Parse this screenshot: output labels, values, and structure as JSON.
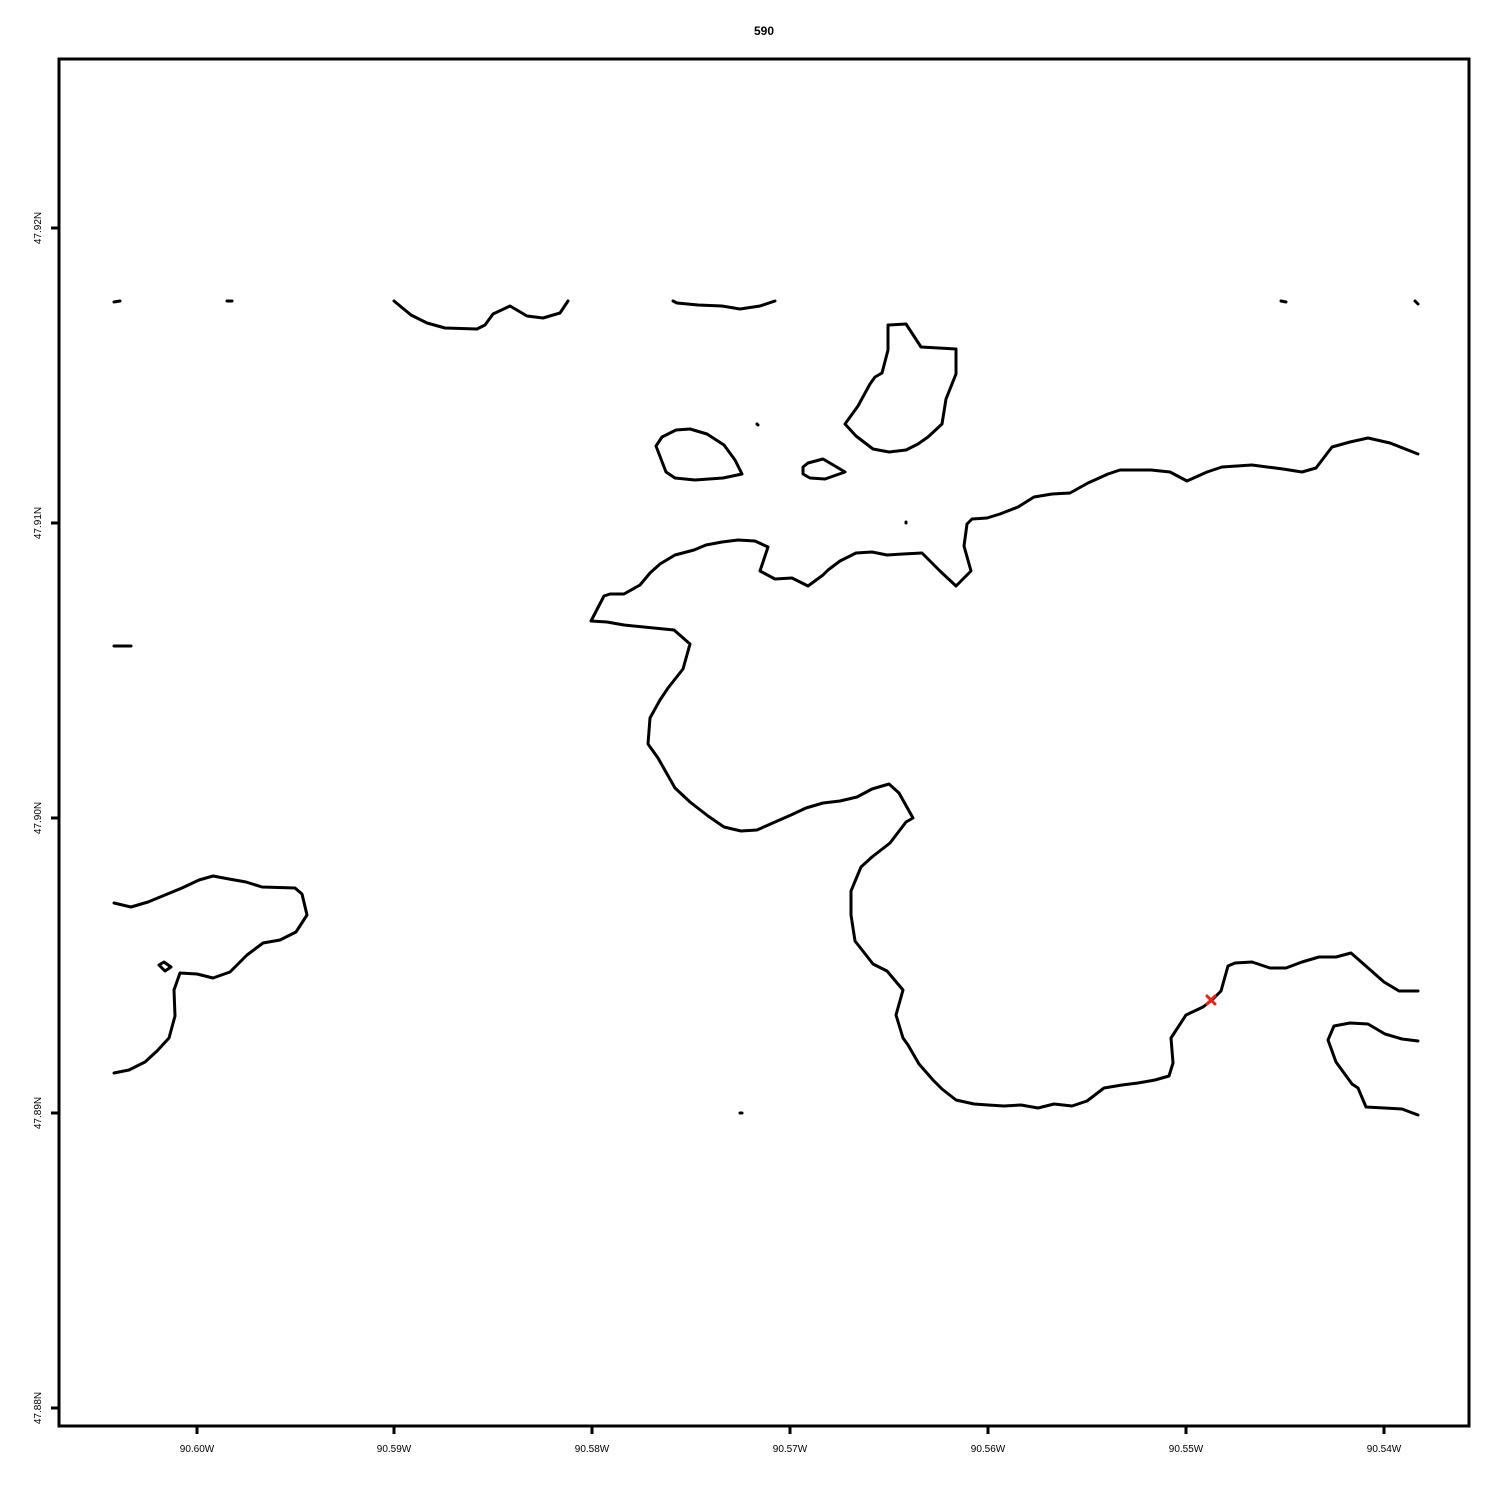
{
  "title": "590",
  "x_axis": {
    "ticks": [
      {
        "label": "90.60W"
      },
      {
        "label": "90.59W"
      },
      {
        "label": "90.58W"
      },
      {
        "label": "90.57W"
      },
      {
        "label": "90.56W"
      },
      {
        "label": "90.55W"
      },
      {
        "label": "90.54W"
      }
    ]
  },
  "y_axis": {
    "ticks": [
      {
        "label": "47.92N"
      },
      {
        "label": "47.91N"
      },
      {
        "label": "47.90N"
      },
      {
        "label": "47.89N"
      },
      {
        "label": "47.88N"
      }
    ]
  },
  "colors": {
    "coastline": "#000000",
    "marker": "#e8211d"
  },
  "marker": {
    "type": "red-point"
  }
}
